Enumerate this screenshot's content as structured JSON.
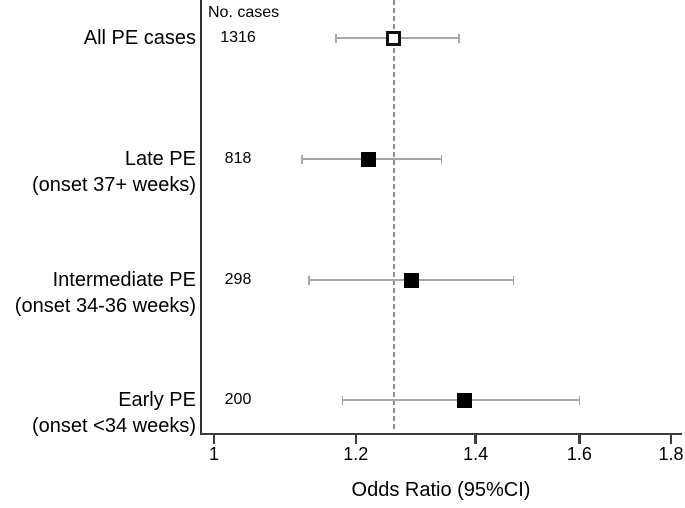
{
  "figure": {
    "cases_header": "No. cases",
    "xlabel": "Odds Ratio (95%CI)"
  },
  "chart_data": {
    "type": "forest",
    "scale": "log",
    "title": "",
    "xlabel": "Odds Ratio (95%CI)",
    "cases_column_header": "No. cases",
    "x_ticks": [
      1,
      1.2,
      1.4,
      1.6,
      1.8
    ],
    "x_tick_labels": [
      "1",
      "1.2",
      "1.4",
      "1.6",
      "1.8"
    ],
    "xlim": [
      1,
      1.8
    ],
    "reference_or": 1.26,
    "reference_line_style": "dashed",
    "rows": [
      {
        "label1": "All PE cases",
        "label2": "",
        "n_cases": "1316",
        "or": 1.26,
        "ci_low": 1.17,
        "ci_high": 1.37,
        "marker": "open-square"
      },
      {
        "label1": "Late PE",
        "label2": "(onset 37+ weeks)",
        "n_cases": "818",
        "or": 1.22,
        "ci_low": 1.12,
        "ci_high": 1.34,
        "marker": "filled-square"
      },
      {
        "label1": "Intermediate PE",
        "label2": "(onset 34-36 weeks)",
        "n_cases": "298",
        "or": 1.29,
        "ci_low": 1.13,
        "ci_high": 1.47,
        "marker": "filled-square"
      },
      {
        "label1": "Early PE",
        "label2": "(onset <34 weeks)",
        "n_cases": "200",
        "or": 1.38,
        "ci_low": 1.18,
        "ci_high": 1.6,
        "marker": "filled-square"
      }
    ],
    "colors": {
      "text": "#000000",
      "axis": "#3d3d3d",
      "ci_line": "#a6a6a6",
      "reference_line": "#8e8e8e",
      "marker_fill": "#000000",
      "open_marker_fill": "#ffffff"
    },
    "legend": null,
    "grid": false
  }
}
